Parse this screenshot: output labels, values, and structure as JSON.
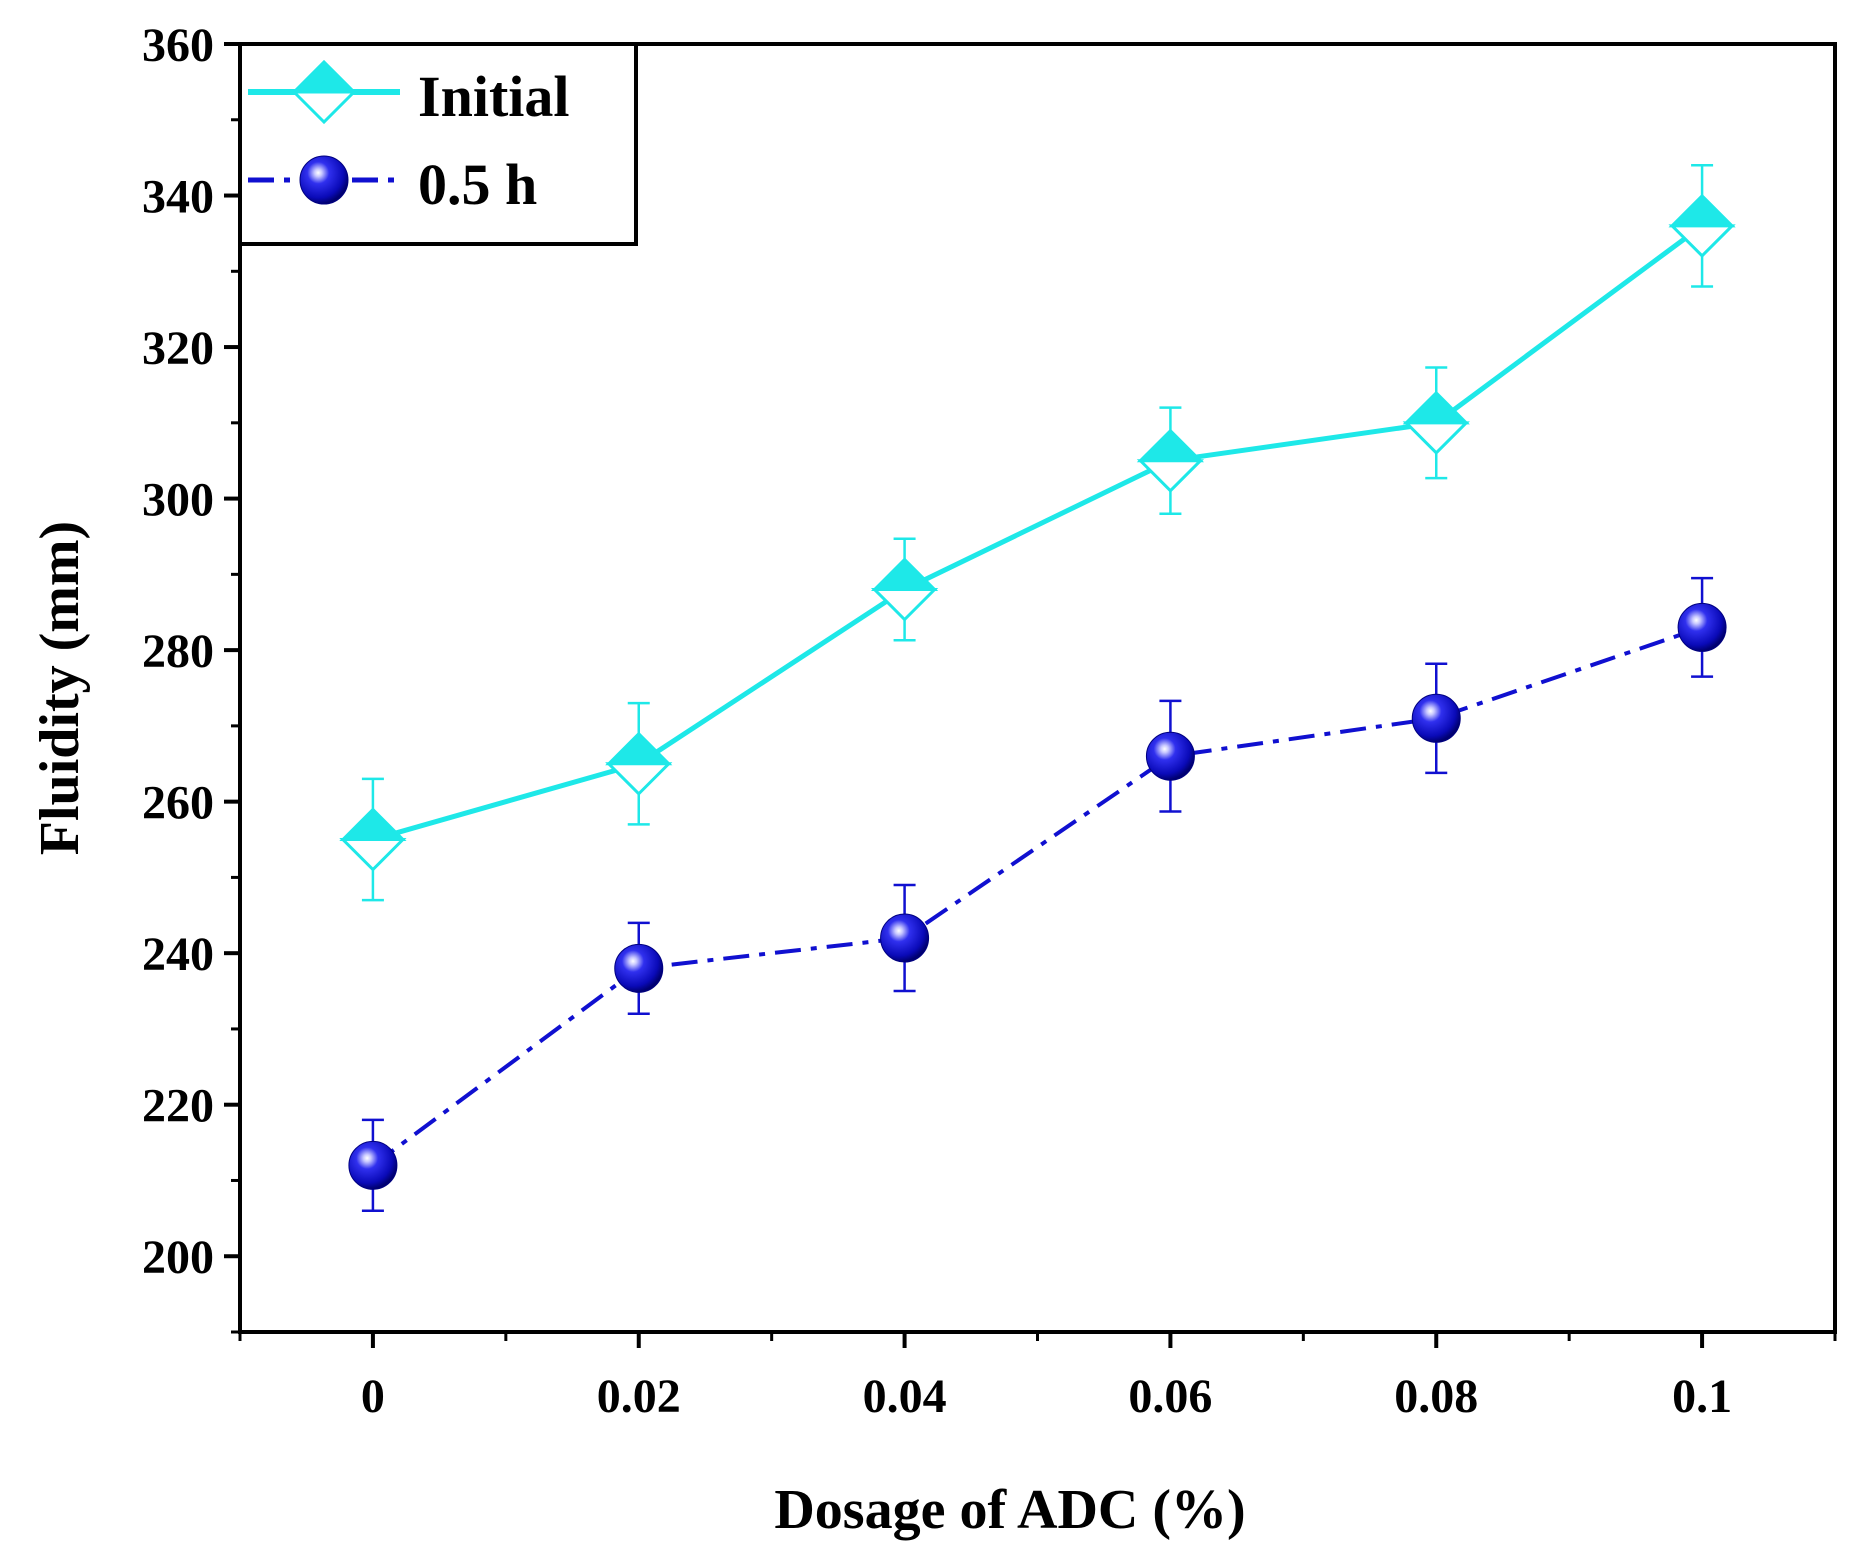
{
  "chart_data": {
    "type": "line",
    "title": "",
    "xlabel": "Dosage of ADC (%)",
    "ylabel": "Fluidity (mm)",
    "x": [
      0,
      0.02,
      0.04,
      0.06,
      0.08,
      0.1
    ],
    "x_tick_labels": [
      "0",
      "0.02",
      "0.04",
      "0.06",
      "0.08",
      "0.1"
    ],
    "xlim": [
      -0.01,
      0.11
    ],
    "ylim": [
      190,
      360
    ],
    "y_ticks": [
      200,
      220,
      240,
      260,
      280,
      300,
      320,
      340,
      360
    ],
    "y_tick_labels": [
      "200",
      "220",
      "240",
      "260",
      "280",
      "300",
      "320",
      "340",
      "360"
    ],
    "grid": false,
    "legend_position": "top-left",
    "series": [
      {
        "name": "Initial",
        "values": [
          255,
          265,
          288,
          305,
          310,
          336
        ],
        "errors": [
          8,
          8,
          6.7,
          7,
          7.3,
          8
        ],
        "color": "#1EE8E8",
        "marker": "half-filled-diamond",
        "line_style": "solid"
      },
      {
        "name": "0.5 h",
        "values": [
          212,
          238,
          242,
          266,
          271,
          283
        ],
        "errors": [
          6,
          6,
          7,
          7.3,
          7.2,
          6.5
        ],
        "color": "#1010D0",
        "marker": "shaded-sphere",
        "line_style": "dash-dot"
      }
    ]
  }
}
